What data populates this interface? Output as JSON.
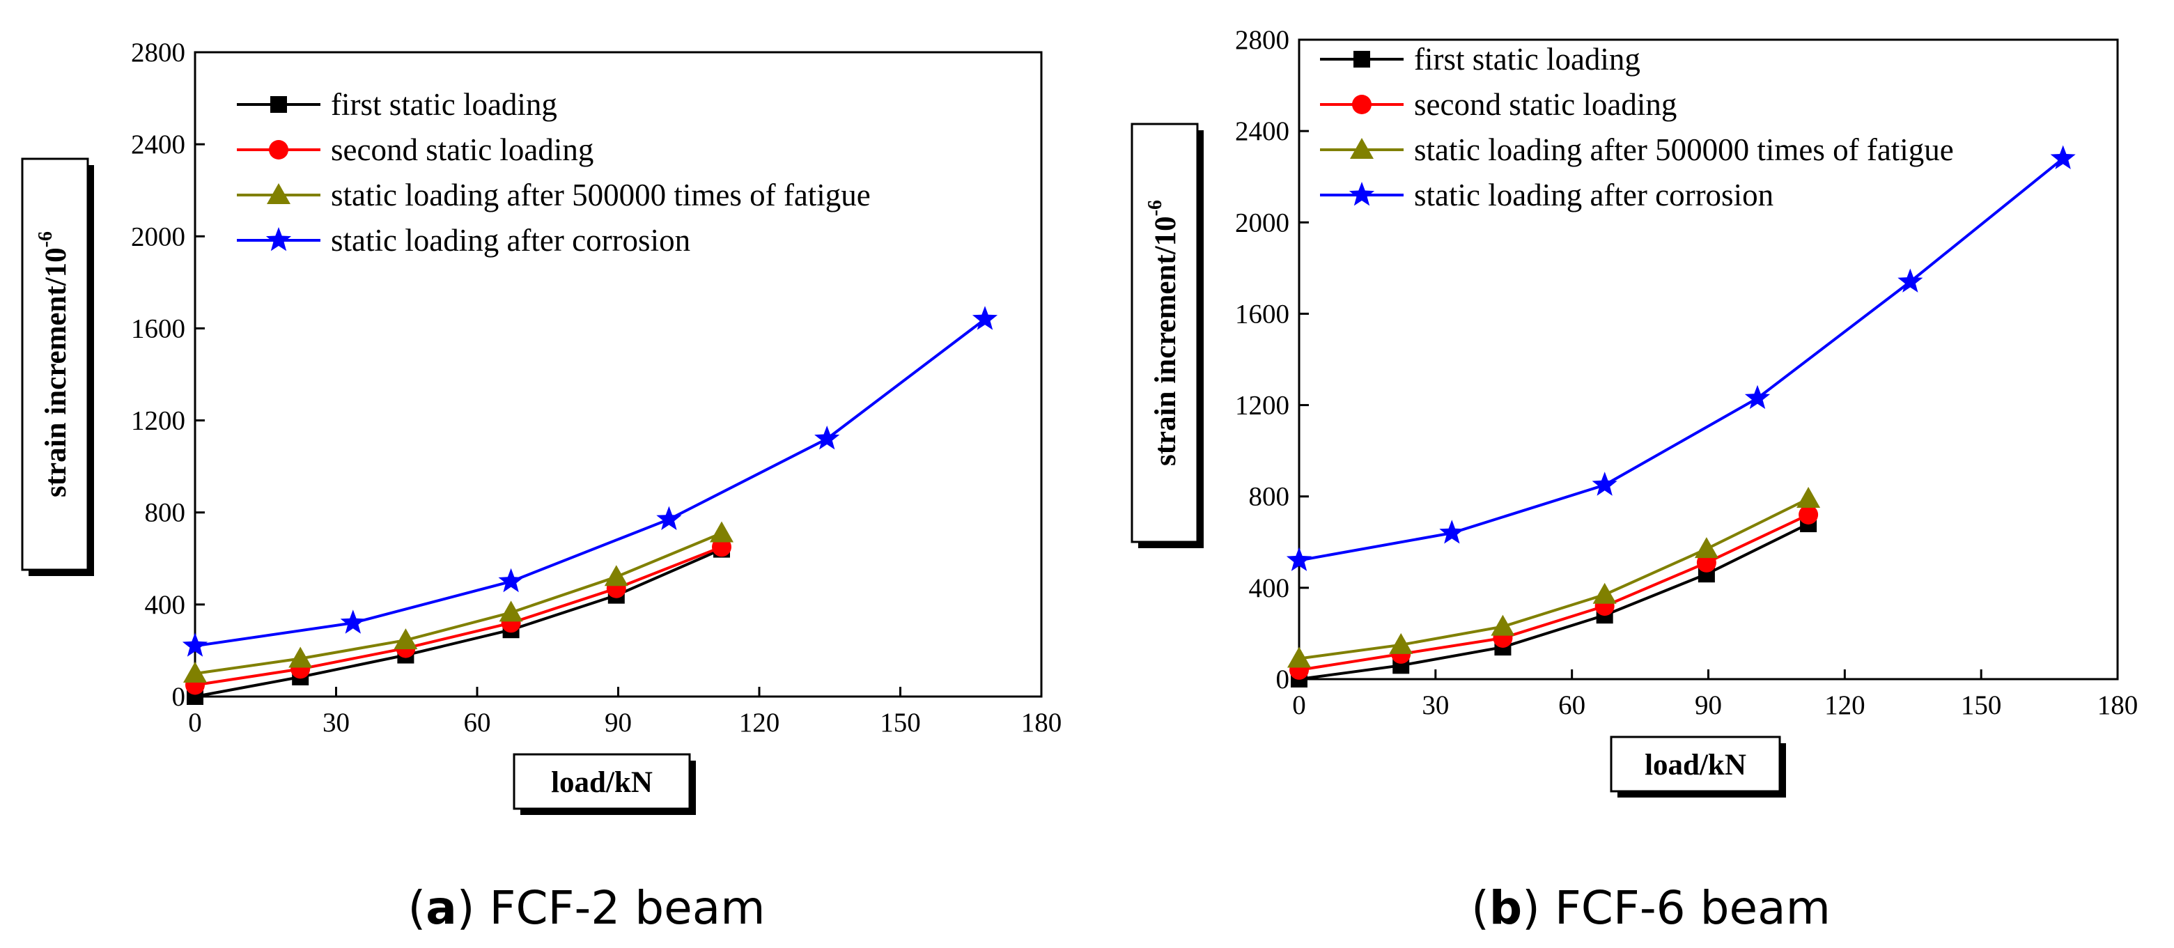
{
  "chart_data": [
    {
      "type": "line",
      "xlabel": "load/kN",
      "ylabel": "strain increment/10",
      "ylabel_exponent": "-6",
      "xlim": [
        0,
        180
      ],
      "ylim": [
        0,
        2800
      ],
      "xticks": [
        0,
        30,
        60,
        90,
        120,
        150,
        180
      ],
      "yticks": [
        0,
        400,
        800,
        1200,
        1600,
        2000,
        2400,
        2800
      ],
      "grid": false,
      "legend_position": "top-left",
      "caption_label": "(a)",
      "caption_letter": "a",
      "caption_text": "FCF-2 beam",
      "series": [
        {
          "name": "first static loading",
          "color": "#000000",
          "marker": "square",
          "x": [
            0,
            22.4,
            44.8,
            67.2,
            89.6,
            112
          ],
          "y": [
            0,
            85,
            180,
            290,
            440,
            640
          ]
        },
        {
          "name": "second static loading",
          "color": "#ff0000",
          "marker": "circle",
          "x": [
            0,
            22.4,
            44.8,
            67.2,
            89.6,
            112
          ],
          "y": [
            50,
            120,
            210,
            320,
            470,
            650
          ]
        },
        {
          "name": "static loading after 500000 times of fatigue",
          "color": "#808000",
          "marker": "triangle",
          "x": [
            0,
            22.4,
            44.8,
            67.2,
            89.6,
            112
          ],
          "y": [
            100,
            165,
            245,
            365,
            520,
            710
          ]
        },
        {
          "name": "static loading after corrosion",
          "color": "#0000ff",
          "marker": "star",
          "x": [
            0,
            33.6,
            67.2,
            100.8,
            134.4,
            168
          ],
          "y": [
            220,
            320,
            500,
            770,
            1120,
            1640
          ]
        }
      ]
    },
    {
      "type": "line",
      "xlabel": "load/kN",
      "ylabel": "strain increment/10",
      "ylabel_exponent": "-6",
      "xlim": [
        0,
        180
      ],
      "ylim": [
        0,
        2800
      ],
      "xticks": [
        0,
        30,
        60,
        90,
        120,
        150,
        180
      ],
      "yticks": [
        0,
        400,
        800,
        1200,
        1600,
        2000,
        2400,
        2800
      ],
      "grid": false,
      "legend_position": "top-left",
      "caption_label": "(b)",
      "caption_letter": "b",
      "caption_text": "FCF-6 beam",
      "series": [
        {
          "name": "first static loading",
          "color": "#000000",
          "marker": "square",
          "x": [
            0,
            22.4,
            44.8,
            67.2,
            89.6,
            112
          ],
          "y": [
            0,
            60,
            140,
            280,
            460,
            680
          ]
        },
        {
          "name": "second static loading",
          "color": "#ff0000",
          "marker": "circle",
          "x": [
            0,
            22.4,
            44.8,
            67.2,
            89.6,
            112
          ],
          "y": [
            40,
            110,
            180,
            320,
            510,
            720
          ]
        },
        {
          "name": "static loading after 500000 times of fatigue",
          "color": "#808000",
          "marker": "triangle",
          "x": [
            0,
            22.4,
            44.8,
            67.2,
            89.6,
            112
          ],
          "y": [
            90,
            150,
            230,
            370,
            570,
            790
          ]
        },
        {
          "name": "static loading after corrosion",
          "color": "#0000ff",
          "marker": "star",
          "x": [
            0,
            33.6,
            67.2,
            100.8,
            134.4,
            168
          ],
          "y": [
            520,
            640,
            850,
            1230,
            1740,
            2280
          ]
        }
      ]
    }
  ]
}
